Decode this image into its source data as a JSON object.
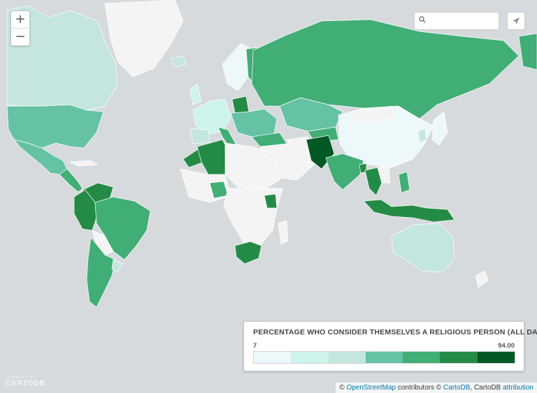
{
  "zoom": {
    "in_label": "+",
    "out_label": "−"
  },
  "search": {
    "placeholder": ""
  },
  "legend": {
    "title": "PERCENTAGE WHO CONSIDER THEMSELVES A RELIGIOUS PERSON (ALL DATA IS %)",
    "min": "7",
    "max": "94.00",
    "colors": [
      "#edf8fb",
      "#ccf4ec",
      "#c4e6df",
      "#66c2a4",
      "#41ae76",
      "#238b45",
      "#005824"
    ]
  },
  "attribution": {
    "prefix": "© ",
    "osm": "OpenStreetMap",
    "mid1": " contributors © ",
    "cartodb": "CartoDB",
    "mid2": ", CartoDB ",
    "attribution": "attribution"
  },
  "branding": {
    "powered_by": "POWERED BY",
    "name": "CARTODB"
  },
  "colors": {
    "ocean": "#d6dadd",
    "nodata": "#f4f4f4",
    "border": "#c9c9c9"
  }
}
